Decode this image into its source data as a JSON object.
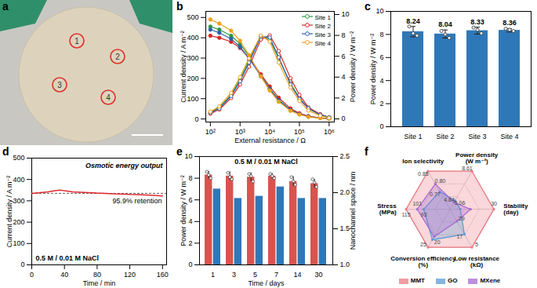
{
  "chart_data": [
    {
      "panel": "a",
      "type": "image",
      "labels": [
        "1",
        "2",
        "3",
        "4"
      ]
    },
    {
      "panel": "b",
      "type": "line",
      "log": "x",
      "x_label": "External resistance / Ω",
      "y_label": "Current density / A m⁻²",
      "y2_label": "Power density / W m⁻²",
      "x": [
        100,
        200,
        500,
        1000,
        2000,
        5000,
        10000,
        20000,
        50000,
        100000,
        200000,
        500000,
        1000000
      ],
      "xlim": [
        70,
        1500000
      ],
      "xticks": [
        {
          "value": 100,
          "label": "10²"
        },
        {
          "value": 1000,
          "label": "10³"
        },
        {
          "value": 10000,
          "label": "10⁴"
        },
        {
          "value": 100000,
          "label": "10⁵"
        },
        {
          "value": 1000000,
          "label": "10⁶"
        }
      ],
      "ylim": [
        -15,
        530
      ],
      "yticks": [
        0,
        100,
        200,
        300,
        400,
        500
      ],
      "y2lim": [
        -0.3,
        10.3
      ],
      "y2ticks": [
        0,
        2,
        4,
        6,
        8,
        10
      ],
      "legend": "top-right",
      "series": [
        {
          "name": "Site 1",
          "color": "#2e9a3e",
          "marker": "circle",
          "values": [
            455,
            440,
            410,
            370,
            310,
            215,
            150,
            95,
            45,
            25,
            12,
            5,
            2
          ]
        },
        {
          "name": "Site 2",
          "color": "#d62728",
          "marker": "circle",
          "values": [
            410,
            400,
            380,
            350,
            300,
            220,
            160,
            105,
            52,
            28,
            14,
            6,
            2
          ]
        },
        {
          "name": "Site 3",
          "color": "#2b5fae",
          "marker": "circle",
          "values": [
            440,
            425,
            395,
            355,
            300,
            210,
            148,
            92,
            44,
            24,
            12,
            5,
            2
          ]
        },
        {
          "name": "Site 4",
          "color": "#f0a21c",
          "marker": "circle",
          "values": [
            490,
            470,
            435,
            385,
            315,
            210,
            140,
            85,
            40,
            22,
            10,
            4,
            1
          ]
        },
        {
          "name": "Site 1",
          "color": "#2e9a3e",
          "marker": "open circle",
          "axis": "y2",
          "values": [
            0.6,
            1.1,
            2.3,
            3.8,
            5.6,
            7.9,
            7.6,
            5.8,
            3.4,
            2.0,
            1.0,
            0.4,
            0.15
          ]
        },
        {
          "name": "Site 2",
          "color": "#d62728",
          "marker": "open circle",
          "axis": "y2",
          "values": [
            0.5,
            0.9,
            2.0,
            3.3,
            5.0,
            7.6,
            8.0,
            6.5,
            3.9,
            2.3,
            1.1,
            0.45,
            0.15
          ]
        },
        {
          "name": "Site 3",
          "color": "#2b5fae",
          "marker": "open circle",
          "axis": "y2",
          "values": [
            0.6,
            1.0,
            2.2,
            3.6,
            5.4,
            7.9,
            7.8,
            5.9,
            3.3,
            1.9,
            1.0,
            0.4,
            0.15
          ]
        },
        {
          "name": "Site 4",
          "color": "#f0a21c",
          "marker": "open circle",
          "axis": "y2",
          "values": [
            0.7,
            1.2,
            2.5,
            4.0,
            5.8,
            8.0,
            7.4,
            5.4,
            3.0,
            1.7,
            0.8,
            0.3,
            0.1
          ]
        }
      ]
    },
    {
      "panel": "c",
      "type": "bar",
      "y_label": "Power density / W m⁻²",
      "categories": [
        "Site 1",
        "Site 2",
        "Site 3",
        "Site 4"
      ],
      "values": [
        8.24,
        8.04,
        8.33,
        8.36
      ],
      "errors": [
        0.45,
        0.35,
        0.3,
        0.15
      ],
      "points": [
        [
          8.7,
          8.1,
          7.9
        ],
        [
          8.3,
          8.0,
          7.7
        ],
        [
          8.6,
          8.4,
          8.1
        ],
        [
          8.5,
          8.4,
          8.3
        ]
      ],
      "color": "#2f78b7",
      "data_labels": true,
      "ylim": [
        0,
        10
      ],
      "yticks": [
        0,
        2,
        4,
        6,
        8,
        10
      ]
    },
    {
      "panel": "d",
      "type": "line",
      "x_label": "Time / min",
      "y_label": "Current density / A m⁻²",
      "annotations": [
        "Osmotic energy output",
        "95.9% retention",
        "0.5 M / 0.01 M NaCl"
      ],
      "x": [
        0,
        10,
        20,
        30,
        35,
        40,
        50,
        60,
        70,
        80,
        90,
        100,
        110,
        120,
        130,
        140,
        150,
        160
      ],
      "values": [
        335,
        338,
        342,
        348,
        350,
        347,
        342,
        340,
        338,
        336,
        335,
        333,
        332,
        330,
        329,
        327,
        325,
        323
      ],
      "color": "#e0282e",
      "reference_line": 335,
      "line_style": "dashed",
      "xlim": [
        0,
        165
      ],
      "xticks": [
        0,
        40,
        80,
        120,
        160
      ],
      "ylim": [
        0,
        500
      ],
      "yticks": [
        0,
        100,
        200,
        300,
        400,
        500
      ]
    },
    {
      "panel": "e",
      "type": "bar",
      "x_label": "Time / days",
      "y_label": "Power density / W m⁻²",
      "y2_label": "Nanochannel space / nm",
      "annotations": [
        "0.5 M / 0.01 M NaCl"
      ],
      "categories": [
        1,
        3,
        5,
        7,
        14,
        30
      ],
      "ylim": [
        0,
        10
      ],
      "yticks": [
        0,
        2,
        4,
        6,
        8,
        10
      ],
      "y2lim": [
        1.0,
        2.5
      ],
      "y2ticks": [
        {
          "value": 1.0,
          "label": "1.0"
        },
        {
          "value": 1.5,
          "label": "1.5"
        },
        {
          "value": 2.0,
          "label": "2.0"
        },
        {
          "value": 2.5,
          "label": "2.5"
        }
      ],
      "series": [
        {
          "color": "#d9534f",
          "values": [
            8.3,
            8.2,
            8.1,
            8.2,
            7.7,
            7.5
          ],
          "errors": [
            0.35,
            0.4,
            0.4,
            0.25,
            0.45,
            0.4
          ],
          "points": [
            [
              8.6,
              8.3,
              8.0
            ],
            [
              8.5,
              8.1,
              7.9
            ],
            [
              8.4,
              8.2,
              7.7
            ],
            [
              8.4,
              8.2,
              8.0
            ],
            [
              8.1,
              7.7,
              7.4
            ],
            [
              7.9,
              7.6,
              7.2
            ]
          ]
        },
        {
          "color": "#2f78b7",
          "axis": "y2",
          "values": [
            2.05,
            1.92,
            1.95,
            2.08,
            1.92,
            1.92
          ]
        }
      ]
    },
    {
      "panel": "f",
      "type": "radar",
      "legend": "bottom",
      "axes": [
        {
          "label": "Ion selectivity",
          "range": [
            0.7,
            0.85
          ],
          "ticks": [
            0.77,
            {
              "value": 0.8,
              "label": "0.80"
            },
            0.85
          ]
        },
        {
          "label": "Power density\n(W m⁻²)",
          "range": [
            4,
            8.61
          ],
          "ticks": [
            4.84,
            5.06,
            8.61
          ]
        },
        {
          "label": "Stability\n(day)",
          "range": [
            0,
            30
          ],
          "ticks": [
            30
          ]
        },
        {
          "label": "Low resistance\n(kΩ)",
          "range": [
            40,
            5
          ],
          "ticks": [
            29,
            17,
            5
          ]
        },
        {
          "label": "Conversion efficiency\n(%)",
          "range": [
            0,
            25
          ],
          "ticks": [
            20,
            25
          ]
        },
        {
          "label": "Stress\n(MPa)",
          "range": [
            60,
            115
          ],
          "ticks": [
            93,
            101,
            115
          ]
        }
      ],
      "series": [
        {
          "name": "MMT",
          "color": "#ec7b84",
          "values": [
            0.85,
            8.61,
            30,
            5,
            25,
            115
          ]
        },
        {
          "name": "GO",
          "color": "#5b9bd5",
          "values": [
            0.77,
            5.06,
            7,
            17,
            20,
            93
          ]
        },
        {
          "name": "MXene",
          "color": "#a66bd3",
          "values": [
            0.8,
            4.84,
            14,
            29,
            18,
            101
          ]
        }
      ]
    }
  ]
}
